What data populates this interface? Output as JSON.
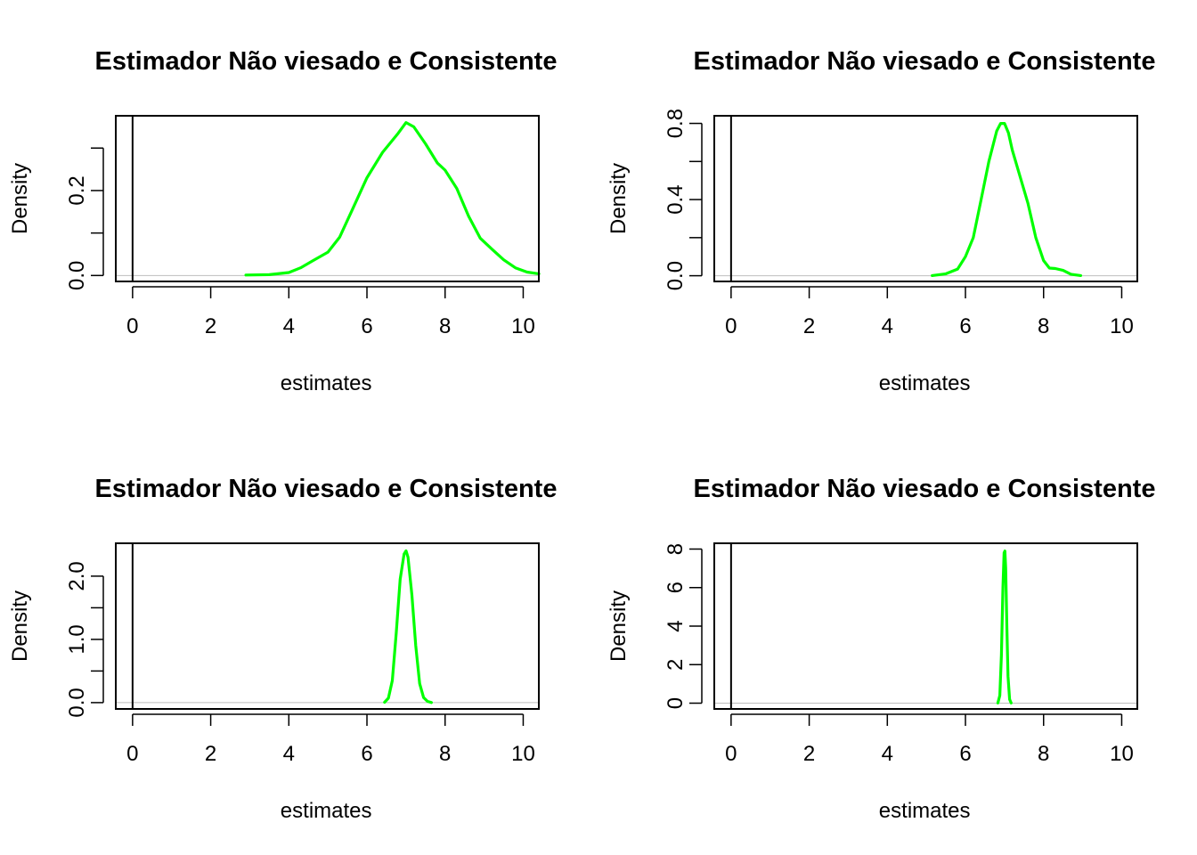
{
  "chart_data": [
    {
      "type": "line",
      "title": "Estimador Não viesado e Consistente",
      "xlabel": "estimates",
      "ylabel": "Density",
      "xlim": [
        -0.43,
        10.4
      ],
      "ylim": [
        -0.014,
        0.376
      ],
      "x_ticks": [
        0,
        2,
        4,
        6,
        8,
        10
      ],
      "x_tick_labels": [
        "0",
        "2",
        "4",
        "6",
        "8",
        "10"
      ],
      "y_ticks": [
        0,
        0.1,
        0.2,
        0.3
      ],
      "y_tick_labels": [
        "0.0",
        "",
        "0.2",
        ""
      ],
      "line_color": "#00ff00",
      "vertical_line_x": 0,
      "series": [
        {
          "x": [
            2.9,
            3.5,
            4.0,
            4.3,
            4.6,
            5.0,
            5.3,
            5.6,
            6.0,
            6.4,
            6.8,
            7.0,
            7.2,
            7.5,
            7.8,
            8.0,
            8.3,
            8.6,
            8.9,
            9.2,
            9.5,
            9.8,
            10.1,
            10.4
          ],
          "values": [
            0.001,
            0.002,
            0.007,
            0.018,
            0.034,
            0.055,
            0.09,
            0.15,
            0.23,
            0.29,
            0.335,
            0.36,
            0.35,
            0.31,
            0.265,
            0.248,
            0.205,
            0.14,
            0.088,
            0.062,
            0.037,
            0.018,
            0.008,
            0.004
          ]
        }
      ]
    },
    {
      "type": "line",
      "title": "Estimador Não viesado e Consistente",
      "xlabel": "estimates",
      "ylabel": "Density",
      "xlim": [
        -0.43,
        10.4
      ],
      "ylim": [
        -0.03,
        0.84
      ],
      "x_ticks": [
        0,
        2,
        4,
        6,
        8,
        10
      ],
      "x_tick_labels": [
        "0",
        "2",
        "4",
        "6",
        "8",
        "10"
      ],
      "y_ticks": [
        0,
        0.2,
        0.4,
        0.6,
        0.8
      ],
      "y_tick_labels": [
        "0.0",
        "",
        "0.4",
        "",
        "0.8"
      ],
      "line_color": "#00ff00",
      "vertical_line_x": 0,
      "series": [
        {
          "x": [
            5.15,
            5.5,
            5.8,
            6.0,
            6.2,
            6.4,
            6.6,
            6.8,
            6.9,
            7.0,
            7.1,
            7.2,
            7.4,
            7.6,
            7.8,
            8.0,
            8.15,
            8.3,
            8.5,
            8.7,
            8.95
          ],
          "values": [
            0.001,
            0.01,
            0.035,
            0.1,
            0.2,
            0.4,
            0.6,
            0.76,
            0.8,
            0.8,
            0.75,
            0.66,
            0.52,
            0.38,
            0.2,
            0.08,
            0.04,
            0.038,
            0.028,
            0.008,
            0.001
          ]
        }
      ]
    },
    {
      "type": "line",
      "title": "Estimador Não viesado e Consistente",
      "xlabel": "estimates",
      "ylabel": "Density",
      "xlim": [
        -0.43,
        10.4
      ],
      "ylim": [
        -0.1,
        2.52
      ],
      "x_ticks": [
        0,
        2,
        4,
        6,
        8,
        10
      ],
      "x_tick_labels": [
        "0",
        "2",
        "4",
        "6",
        "8",
        "10"
      ],
      "y_ticks": [
        0,
        0.5,
        1.0,
        1.5,
        2.0
      ],
      "y_tick_labels": [
        "0.0",
        "",
        "1.0",
        "",
        "2.0"
      ],
      "line_color": "#00ff00",
      "vertical_line_x": 0,
      "series": [
        {
          "x": [
            6.45,
            6.55,
            6.65,
            6.75,
            6.85,
            6.95,
            7.0,
            7.05,
            7.15,
            7.25,
            7.35,
            7.45,
            7.55,
            7.65
          ],
          "values": [
            0.005,
            0.07,
            0.35,
            1.1,
            1.95,
            2.35,
            2.4,
            2.3,
            1.7,
            0.9,
            0.3,
            0.08,
            0.02,
            0.002
          ]
        }
      ]
    },
    {
      "type": "line",
      "title": "Estimador Não viesado e Consistente",
      "xlabel": "estimates",
      "ylabel": "Density",
      "xlim": [
        -0.43,
        10.4
      ],
      "ylim": [
        -0.3,
        8.3
      ],
      "x_ticks": [
        0,
        2,
        4,
        6,
        8,
        10
      ],
      "x_tick_labels": [
        "0",
        "2",
        "4",
        "6",
        "8",
        "10"
      ],
      "y_ticks": [
        0,
        2,
        4,
        6,
        8
      ],
      "y_tick_labels": [
        "0",
        "2",
        "4",
        "6",
        "8"
      ],
      "line_color": "#00ff00",
      "vertical_line_x": 0,
      "series": [
        {
          "x": [
            6.83,
            6.88,
            6.92,
            6.96,
            6.99,
            7.01,
            7.03,
            7.06,
            7.09,
            7.13,
            7.17
          ],
          "values": [
            0.01,
            0.4,
            2.5,
            6.0,
            7.8,
            7.9,
            7.0,
            4.0,
            1.4,
            0.2,
            0.01
          ]
        }
      ]
    }
  ]
}
